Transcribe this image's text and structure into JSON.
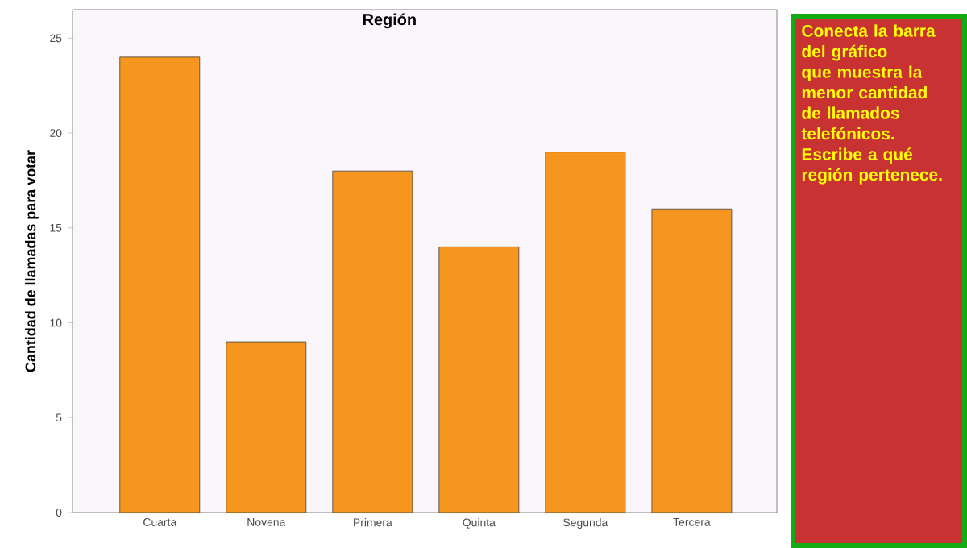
{
  "chart_data": {
    "type": "bar",
    "title": "Región",
    "ylabel": "Cantidad de llamadas para votar",
    "categories": [
      "Cuarta",
      "Novena",
      "Primera",
      "Quinta",
      "Segunda",
      "Tercera"
    ],
    "values": [
      24,
      9,
      18,
      14,
      19,
      16
    ],
    "color": "#f7961e",
    "ylim": [
      0,
      26.5
    ],
    "yticks": [
      0,
      5,
      10,
      15,
      20,
      25
    ],
    "annotations": [
      "Conecta la barra del gráfico que muestra la menor cantidad de llamados telefónicos. Escribe a qué región pertenece."
    ]
  }
}
